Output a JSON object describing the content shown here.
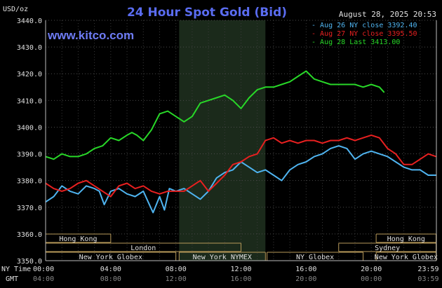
{
  "chart_data": {
    "type": "line",
    "title": "24 Hour Spot Gold (Bid)",
    "website": "www.kitco.com",
    "timestamp": "August 28, 2025 20:53",
    "ylabel": "USD/oz",
    "ylim": [
      3350,
      3440
    ],
    "yticks": [
      "3440.0",
      "3430.0",
      "3420.0",
      "3410.0",
      "3400.0",
      "3390.0",
      "3380.0",
      "3370.0",
      "3360.0",
      "3350.0"
    ],
    "xlim": [
      0,
      24
    ],
    "xticks_ny": [
      "00:00",
      "04:00",
      "08:00",
      "12:00",
      "16:00",
      "20:00",
      "23:59"
    ],
    "xticks_gmt": [
      "04:00",
      "08:00",
      "12:00",
      "16:00",
      "20:00",
      "00:00",
      "03:59"
    ],
    "x_row_labels": [
      "NY Time",
      "GMT"
    ],
    "grid": true,
    "legend_position": "top-right",
    "colors": {
      "aug26": "#4fb4f0",
      "aug27": "#e82020",
      "aug28": "#28d828",
      "title": "#5a6cf0",
      "website": "#6e7cf5",
      "axis_text": "#e0e0e0"
    },
    "series": [
      {
        "name": "Aug 26 NY close 3392.40",
        "color": "#4fb4f0",
        "x": [
          0,
          0.5,
          1,
          1.5,
          2,
          2.5,
          3,
          3.3,
          3.6,
          4,
          4.5,
          5,
          5.5,
          6,
          6.3,
          6.6,
          7,
          7.3,
          7.6,
          8,
          8.5,
          9,
          9.5,
          10,
          10.5,
          11,
          11.5,
          12,
          12.5,
          13,
          13.5,
          14,
          14.5,
          15,
          15.5,
          16,
          16.5,
          17,
          17.5,
          18,
          18.5,
          19,
          19.5,
          20,
          20.5,
          21,
          21.5,
          22,
          22.5,
          23,
          23.5,
          23.98
        ],
        "values": [
          3372,
          3374,
          3378,
          3376,
          3375,
          3378,
          3377,
          3376,
          3371,
          3376,
          3377,
          3375,
          3374,
          3376,
          3372,
          3368,
          3374,
          3369,
          3377,
          3376,
          3377,
          3375,
          3373,
          3376,
          3381,
          3383,
          3384,
          3387,
          3385,
          3383,
          3384,
          3382,
          3380,
          3384,
          3386,
          3387,
          3389,
          3390,
          3392,
          3393,
          3392,
          3388,
          3390,
          3391,
          3390,
          3389,
          3387,
          3385,
          3384,
          3384,
          3382,
          3382
        ]
      },
      {
        "name": "Aug 27 NY close 3395.50",
        "color": "#e82020",
        "x": [
          0,
          0.5,
          1,
          1.5,
          2,
          2.5,
          3,
          3.5,
          4,
          4.5,
          5,
          5.5,
          6,
          6.5,
          7,
          7.5,
          8,
          8.5,
          9,
          9.5,
          10,
          10.5,
          11,
          11.5,
          12,
          12.5,
          13,
          13.5,
          14,
          14.5,
          15,
          15.5,
          16,
          16.5,
          17,
          17.5,
          18,
          18.5,
          19,
          19.5,
          20,
          20.5,
          21,
          21.5,
          22,
          22.5,
          23,
          23.5,
          23.98
        ],
        "values": [
          3379,
          3377,
          3376,
          3377,
          3379,
          3380,
          3378,
          3376,
          3374,
          3378,
          3379,
          3377,
          3378,
          3376,
          3375,
          3376,
          3376,
          3376,
          3378,
          3380,
          3376,
          3379,
          3382,
          3386,
          3387,
          3389,
          3390,
          3395,
          3396,
          3394,
          3395,
          3394,
          3395,
          3395,
          3394,
          3395,
          3395,
          3396,
          3395,
          3396,
          3397,
          3396,
          3392,
          3390,
          3386,
          3386,
          3388,
          3390,
          3389
        ]
      },
      {
        "name": "Aug 28 Last 3413.00",
        "color": "#28d828",
        "x": [
          0,
          0.5,
          1,
          1.5,
          2,
          2.5,
          3,
          3.5,
          4,
          4.5,
          5,
          5.3,
          5.6,
          6,
          6.5,
          7,
          7.5,
          8,
          8.5,
          9,
          9.5,
          10,
          10.5,
          11,
          11.5,
          12,
          12.5,
          13,
          13.5,
          14,
          14.5,
          15,
          15.5,
          16,
          16.5,
          17,
          17.5,
          18,
          18.5,
          19,
          19.5,
          20,
          20.5,
          20.8
        ],
        "values": [
          3389,
          3388,
          3390,
          3389,
          3389,
          3390,
          3392,
          3393,
          3396,
          3395,
          3397,
          3398,
          3397,
          3395,
          3399,
          3405,
          3406,
          3404,
          3402,
          3404,
          3409,
          3410,
          3411,
          3412,
          3410,
          3407,
          3411,
          3414,
          3415,
          3415,
          3416,
          3417,
          3419,
          3421,
          3418,
          3417,
          3416,
          3416,
          3416,
          3416,
          3415,
          3416,
          3415,
          3413
        ]
      }
    ],
    "sessions": [
      {
        "name": "Hong Kong",
        "start": 0,
        "end": 4.0,
        "row": 0
      },
      {
        "name": "London",
        "start": 0,
        "end": 12.0,
        "row": 1
      },
      {
        "name": "New York Globex",
        "start": 0,
        "end": 8.0,
        "row": 2
      },
      {
        "name": "New York NYMEX",
        "start": 8.2,
        "end": 13.5,
        "row": 2
      },
      {
        "name": "NY Globex",
        "start": 13.6,
        "end": 19.5,
        "row": 2
      },
      {
        "name": "Hong Kong",
        "start": 20.3,
        "end": 23.98,
        "row": 0
      },
      {
        "name": "Sydney",
        "start": 18.0,
        "end": 23.98,
        "row": 1
      },
      {
        "name": "New York Globex",
        "start": 20.3,
        "end": 23.98,
        "row": 2
      }
    ],
    "shaded_band": {
      "start": 8.2,
      "end": 13.5
    }
  }
}
